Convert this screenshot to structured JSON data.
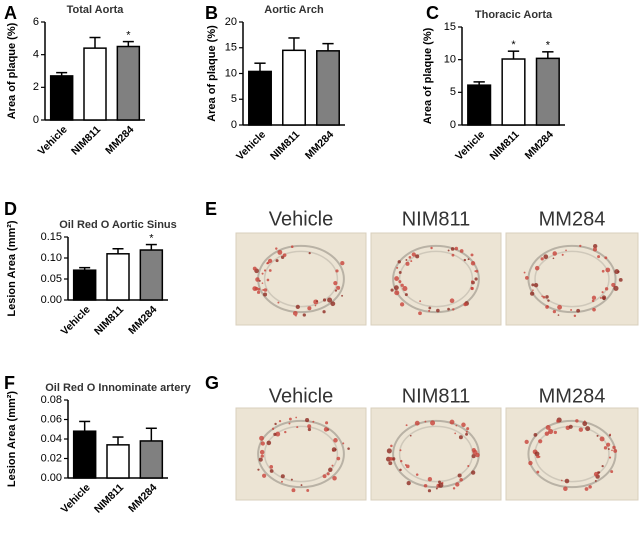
{
  "chart_data": [
    {
      "type": "bar",
      "panel": "A",
      "title": "Total Aorta",
      "y_label": "Area of plaque (%)",
      "categories": [
        "Vehicle",
        "NIM811",
        "MM284"
      ],
      "values": [
        2.7,
        4.4,
        4.5
      ],
      "errors": [
        0.2,
        0.65,
        0.3
      ],
      "colors": [
        "#000000",
        "#ffffff",
        "#808080"
      ],
      "ylim": [
        0,
        6
      ],
      "yticks": [
        0,
        2,
        4,
        6
      ],
      "annotations": [
        {
          "x": "MM284",
          "text": "*"
        }
      ]
    },
    {
      "type": "bar",
      "panel": "B",
      "title": "Aortic Arch",
      "y_label": "Area of plaque (%)",
      "categories": [
        "Vehicle",
        "NIM811",
        "MM284"
      ],
      "values": [
        10.4,
        14.5,
        14.4
      ],
      "errors": [
        1.6,
        2.4,
        1.4
      ],
      "colors": [
        "#000000",
        "#ffffff",
        "#808080"
      ],
      "ylim": [
        0,
        20
      ],
      "yticks": [
        0,
        5,
        10,
        15,
        20
      ],
      "annotations": []
    },
    {
      "type": "bar",
      "panel": "C",
      "title": "Thoracic Aorta",
      "y_label": "Area of plaque (%)",
      "categories": [
        "Vehicle",
        "NIM811",
        "MM284"
      ],
      "values": [
        6.1,
        10.1,
        10.2
      ],
      "errors": [
        0.5,
        1.2,
        1.0
      ],
      "colors": [
        "#000000",
        "#ffffff",
        "#808080"
      ],
      "ylim": [
        0,
        15
      ],
      "yticks": [
        0,
        5,
        10,
        15
      ],
      "annotations": [
        {
          "x": "NIM811",
          "text": "*"
        },
        {
          "x": "MM284",
          "text": "*"
        }
      ]
    },
    {
      "type": "bar",
      "panel": "D",
      "title": "Oil Red O Aortic Sinus",
      "y_label": "Lesion Area (mm²)",
      "categories": [
        "Vehicle",
        "NIM811",
        "MM284"
      ],
      "values": [
        0.071,
        0.11,
        0.119
      ],
      "errors": [
        0.006,
        0.012,
        0.013
      ],
      "colors": [
        "#000000",
        "#ffffff",
        "#808080"
      ],
      "ylim": [
        0,
        0.15
      ],
      "yticks": [
        {
          "value": 0,
          "label": "0.00"
        },
        {
          "value": 0.05,
          "label": "0.05"
        },
        {
          "value": 0.1,
          "label": "0.10"
        },
        {
          "value": 0.15,
          "label": "0.15"
        }
      ],
      "annotations": [
        {
          "x": "MM284",
          "text": "*"
        }
      ]
    },
    {
      "type": "bar",
      "panel": "F",
      "title": "Oil Red O Innominate artery",
      "y_label": "Lesion Area (mm²)",
      "categories": [
        "Vehicle",
        "NIM811",
        "MM284"
      ],
      "values": [
        0.048,
        0.034,
        0.038
      ],
      "errors": [
        0.01,
        0.008,
        0.013
      ],
      "colors": [
        "#000000",
        "#ffffff",
        "#808080"
      ],
      "ylim": [
        0,
        0.08
      ],
      "yticks": [
        {
          "value": 0,
          "label": "0.00"
        },
        {
          "value": 0.02,
          "label": "0.02"
        },
        {
          "value": 0.04,
          "label": "0.04"
        },
        {
          "value": 0.06,
          "label": "0.06"
        },
        {
          "value": 0.08,
          "label": "0.08"
        }
      ],
      "annotations": []
    }
  ],
  "images": [
    {
      "panel": "E",
      "labels": [
        "Vehicle",
        "NIM811",
        "MM284"
      ]
    },
    {
      "panel": "G",
      "labels": [
        "Vehicle",
        "NIM811",
        "MM284"
      ]
    }
  ]
}
